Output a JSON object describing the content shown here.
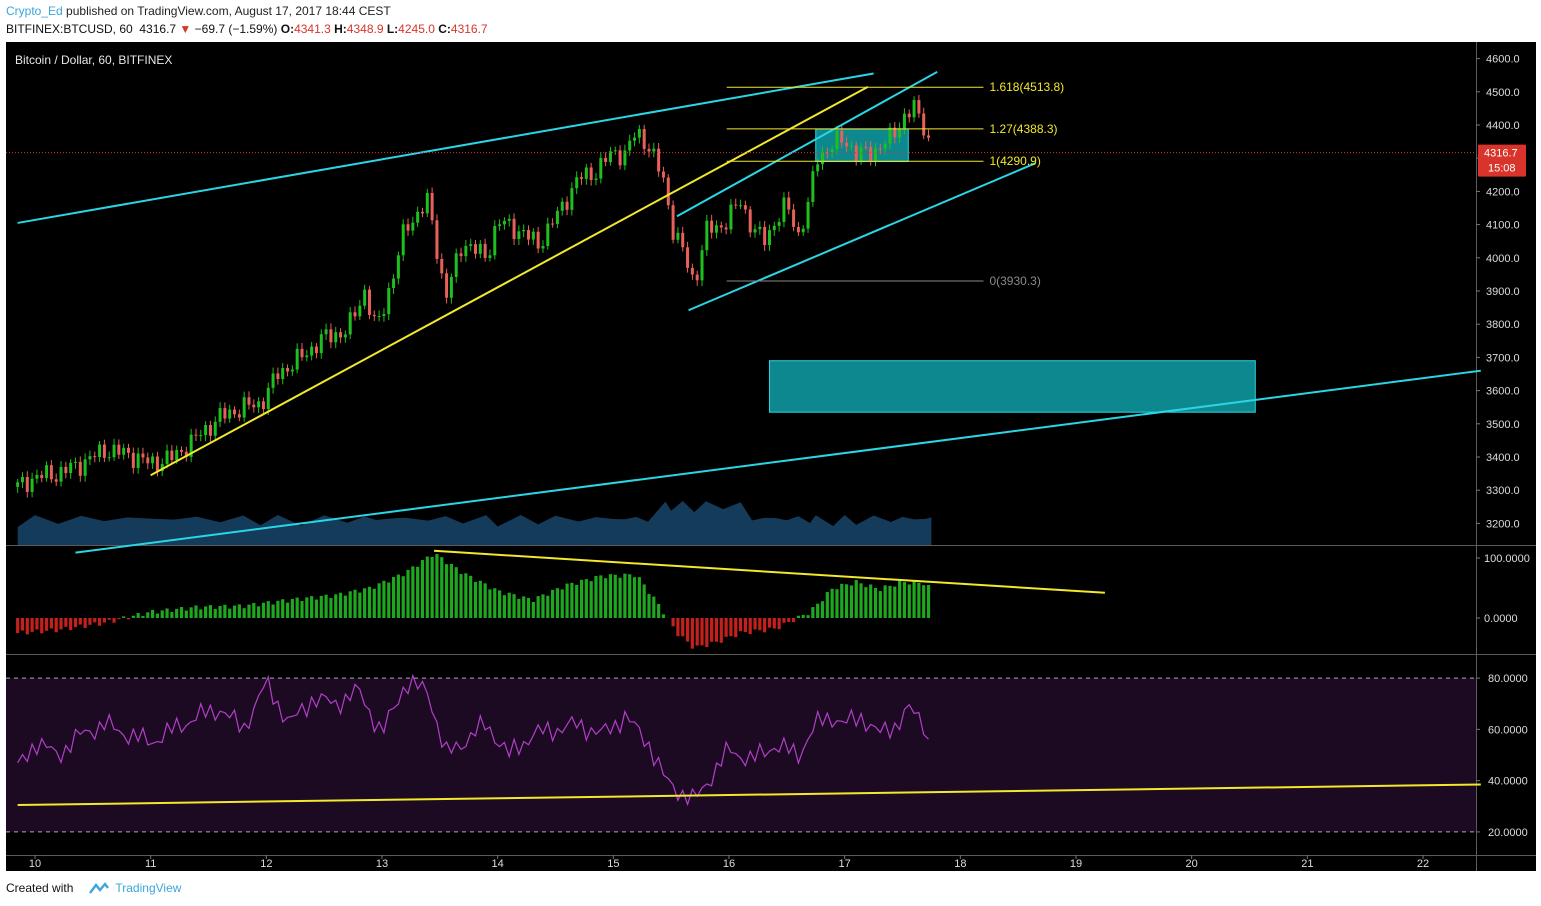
{
  "header": {
    "author": "Crypto_Ed",
    "published": "published on TradingView.com, August 17, 2017 18:44 CEST",
    "symbol": "BITFINEX:BTCUSD, 60",
    "last": "4316.7",
    "change_arrow": "▼",
    "change": "−69.7 (−1.59%)",
    "o_label": "O:",
    "o_value": "4341.3",
    "h_label": "H:",
    "h_value": "4348.9",
    "l_label": "L:",
    "l_value": "4245.0",
    "c_label": "C:",
    "c_value": "4316.7"
  },
  "footer": {
    "created_with": "Created with",
    "brand": "TradingView"
  },
  "colors": {
    "up": "#1fbf1f",
    "down": "#e8605a",
    "cyan": "#2ad6e6",
    "yellow": "#f2e82c",
    "zone": "#0e8f96",
    "rsi_line": "#b23fc9",
    "rsi_bg": "#1c0a22"
  },
  "chart_data": [
    {
      "type": "candlestick",
      "title": "Bitcoin / Dollar, 60, BITFINEX",
      "x_ticks": [
        "10",
        "11",
        "12",
        "13",
        "14",
        "15",
        "16",
        "17",
        "18",
        "19",
        "20",
        "21",
        "22"
      ],
      "y_ticks": [
        "3200.0",
        "3300.0",
        "3400.0",
        "3500.0",
        "3600.0",
        "3700.0",
        "3800.0",
        "3900.0",
        "4000.0",
        "4100.0",
        "4200.0",
        "4300.0",
        "4400.0",
        "4500.0",
        "4600.0"
      ],
      "ylim": [
        3135,
        4650
      ],
      "last_price_label": "4316.7",
      "last_price_value": 4316.7,
      "timer_label": "15:08",
      "price_path": [
        {
          "x": 9.85,
          "y": 3310
        },
        {
          "x": 10.0,
          "y": 3340
        },
        {
          "x": 10.2,
          "y": 3350
        },
        {
          "x": 10.4,
          "y": 3380
        },
        {
          "x": 10.6,
          "y": 3420
        },
        {
          "x": 10.8,
          "y": 3410
        },
        {
          "x": 11.0,
          "y": 3380
        },
        {
          "x": 11.2,
          "y": 3400
        },
        {
          "x": 11.4,
          "y": 3460
        },
        {
          "x": 11.6,
          "y": 3520
        },
        {
          "x": 11.8,
          "y": 3550
        },
        {
          "x": 11.95,
          "y": 3560
        },
        {
          "x": 12.1,
          "y": 3650
        },
        {
          "x": 12.3,
          "y": 3700
        },
        {
          "x": 12.5,
          "y": 3760
        },
        {
          "x": 12.7,
          "y": 3780
        },
        {
          "x": 12.85,
          "y": 3900
        },
        {
          "x": 12.95,
          "y": 3780
        },
        {
          "x": 13.1,
          "y": 3950
        },
        {
          "x": 13.2,
          "y": 4090
        },
        {
          "x": 13.4,
          "y": 4170
        },
        {
          "x": 13.55,
          "y": 3880
        },
        {
          "x": 13.7,
          "y": 4050
        },
        {
          "x": 13.9,
          "y": 4000
        },
        {
          "x": 14.0,
          "y": 4110
        },
        {
          "x": 14.2,
          "y": 4080
        },
        {
          "x": 14.35,
          "y": 4040
        },
        {
          "x": 14.5,
          "y": 4120
        },
        {
          "x": 14.7,
          "y": 4240
        },
        {
          "x": 14.85,
          "y": 4260
        },
        {
          "x": 15.0,
          "y": 4320
        },
        {
          "x": 15.1,
          "y": 4310
        },
        {
          "x": 15.2,
          "y": 4380
        },
        {
          "x": 15.3,
          "y": 4340
        },
        {
          "x": 15.45,
          "y": 4220
        },
        {
          "x": 15.5,
          "y": 4100
        },
        {
          "x": 15.6,
          "y": 4020
        },
        {
          "x": 15.7,
          "y": 3920
        },
        {
          "x": 15.8,
          "y": 4080
        },
        {
          "x": 15.95,
          "y": 4100
        },
        {
          "x": 16.1,
          "y": 4170
        },
        {
          "x": 16.2,
          "y": 4090
        },
        {
          "x": 16.3,
          "y": 4050
        },
        {
          "x": 16.4,
          "y": 4110
        },
        {
          "x": 16.5,
          "y": 4160
        },
        {
          "x": 16.6,
          "y": 4070
        },
        {
          "x": 16.7,
          "y": 4170
        },
        {
          "x": 16.75,
          "y": 4300
        },
        {
          "x": 16.9,
          "y": 4340
        },
        {
          "x": 17.0,
          "y": 4360
        },
        {
          "x": 17.1,
          "y": 4310
        },
        {
          "x": 17.25,
          "y": 4320
        },
        {
          "x": 17.4,
          "y": 4360
        },
        {
          "x": 17.5,
          "y": 4420
        },
        {
          "x": 17.6,
          "y": 4450
        },
        {
          "x": 17.7,
          "y": 4390
        },
        {
          "x": 17.75,
          "y": 4316.7
        }
      ],
      "fibonacci": [
        {
          "label": "1.618(4513.8)",
          "value": 4513.8
        },
        {
          "label": "1.27(4388.3)",
          "value": 4388.3
        },
        {
          "label": "1(4290.9)",
          "value": 4290.9
        },
        {
          "label": "0(3930.3)",
          "value": 3930.3
        }
      ],
      "trendlines": [
        {
          "color": "cyan",
          "from": {
            "x": 9.85,
            "y": 4105
          },
          "to": {
            "x": 17.25,
            "y": 4555
          }
        },
        {
          "color": "cyan",
          "from": {
            "x": 10.35,
            "y": 3112
          },
          "to": {
            "x": 22.5,
            "y": 3660
          }
        },
        {
          "color": "yellow",
          "from": {
            "x": 11.0,
            "y": 3345
          },
          "to": {
            "x": 17.2,
            "y": 4515
          }
        },
        {
          "color": "cyan",
          "from": {
            "x": 15.55,
            "y": 4125
          },
          "to": {
            "x": 17.8,
            "y": 4560
          }
        },
        {
          "color": "cyan",
          "from": {
            "x": 15.65,
            "y": 3842
          },
          "to": {
            "x": 18.65,
            "y": 4285
          }
        }
      ],
      "zones": [
        {
          "x_from": 16.35,
          "x_to": 20.55,
          "y_from": 3535,
          "y_to": 3690
        },
        {
          "x_from": 16.75,
          "x_to": 17.55,
          "y_from": 4290,
          "y_to": 4388
        }
      ]
    },
    {
      "type": "histogram",
      "y_ticks": [
        "0.0000",
        "100.0000"
      ],
      "ylim": [
        -60,
        120
      ],
      "x": [
        9.85,
        10.2,
        10.6,
        11.0,
        11.4,
        11.8,
        12.2,
        12.6,
        12.9,
        13.2,
        13.45,
        13.7,
        14.0,
        14.3,
        14.6,
        14.9,
        15.2,
        15.4,
        15.55,
        15.7,
        15.9,
        16.1,
        16.4,
        16.7,
        16.9,
        17.1,
        17.3,
        17.5,
        17.7,
        17.75
      ],
      "values": [
        -25,
        -20,
        -8,
        10,
        18,
        20,
        30,
        38,
        50,
        75,
        108,
        75,
        45,
        30,
        55,
        70,
        72,
        20,
        -25,
        -50,
        -40,
        -25,
        -18,
        10,
        50,
        60,
        48,
        60,
        58,
        45
      ],
      "trendline": {
        "from": {
          "x": 13.45,
          "y": 112
        },
        "to": {
          "x": 19.25,
          "y": 42
        }
      }
    },
    {
      "type": "line",
      "y_ticks": [
        "20.0000",
        "40.0000",
        "60.0000",
        "80.0000"
      ],
      "ylim": [
        11,
        89
      ],
      "bands": [
        20,
        80
      ],
      "x": [
        9.85,
        10.0,
        10.2,
        10.4,
        10.6,
        10.8,
        11.0,
        11.2,
        11.4,
        11.6,
        11.8,
        12.0,
        12.2,
        12.4,
        12.6,
        12.8,
        13.0,
        13.2,
        13.4,
        13.55,
        13.7,
        13.9,
        14.1,
        14.3,
        14.5,
        14.7,
        14.9,
        15.1,
        15.3,
        15.45,
        15.6,
        15.7,
        15.85,
        16.0,
        16.2,
        16.4,
        16.6,
        16.75,
        16.9,
        17.0,
        17.15,
        17.3,
        17.45,
        17.55,
        17.7,
        17.75
      ],
      "values": [
        45,
        55,
        50,
        58,
        62,
        58,
        55,
        60,
        65,
        68,
        60,
        78,
        62,
        72,
        70,
        75,
        58,
        78,
        75,
        50,
        55,
        62,
        50,
        58,
        60,
        62,
        58,
        65,
        55,
        40,
        35,
        32,
        42,
        52,
        48,
        54,
        50,
        62,
        65,
        62,
        65,
        58,
        62,
        68,
        62,
        48
      ],
      "trendline": {
        "from": {
          "x": 9.85,
          "y": 30.5
        },
        "to": {
          "x": 22.5,
          "y": 38.5
        }
      }
    }
  ]
}
